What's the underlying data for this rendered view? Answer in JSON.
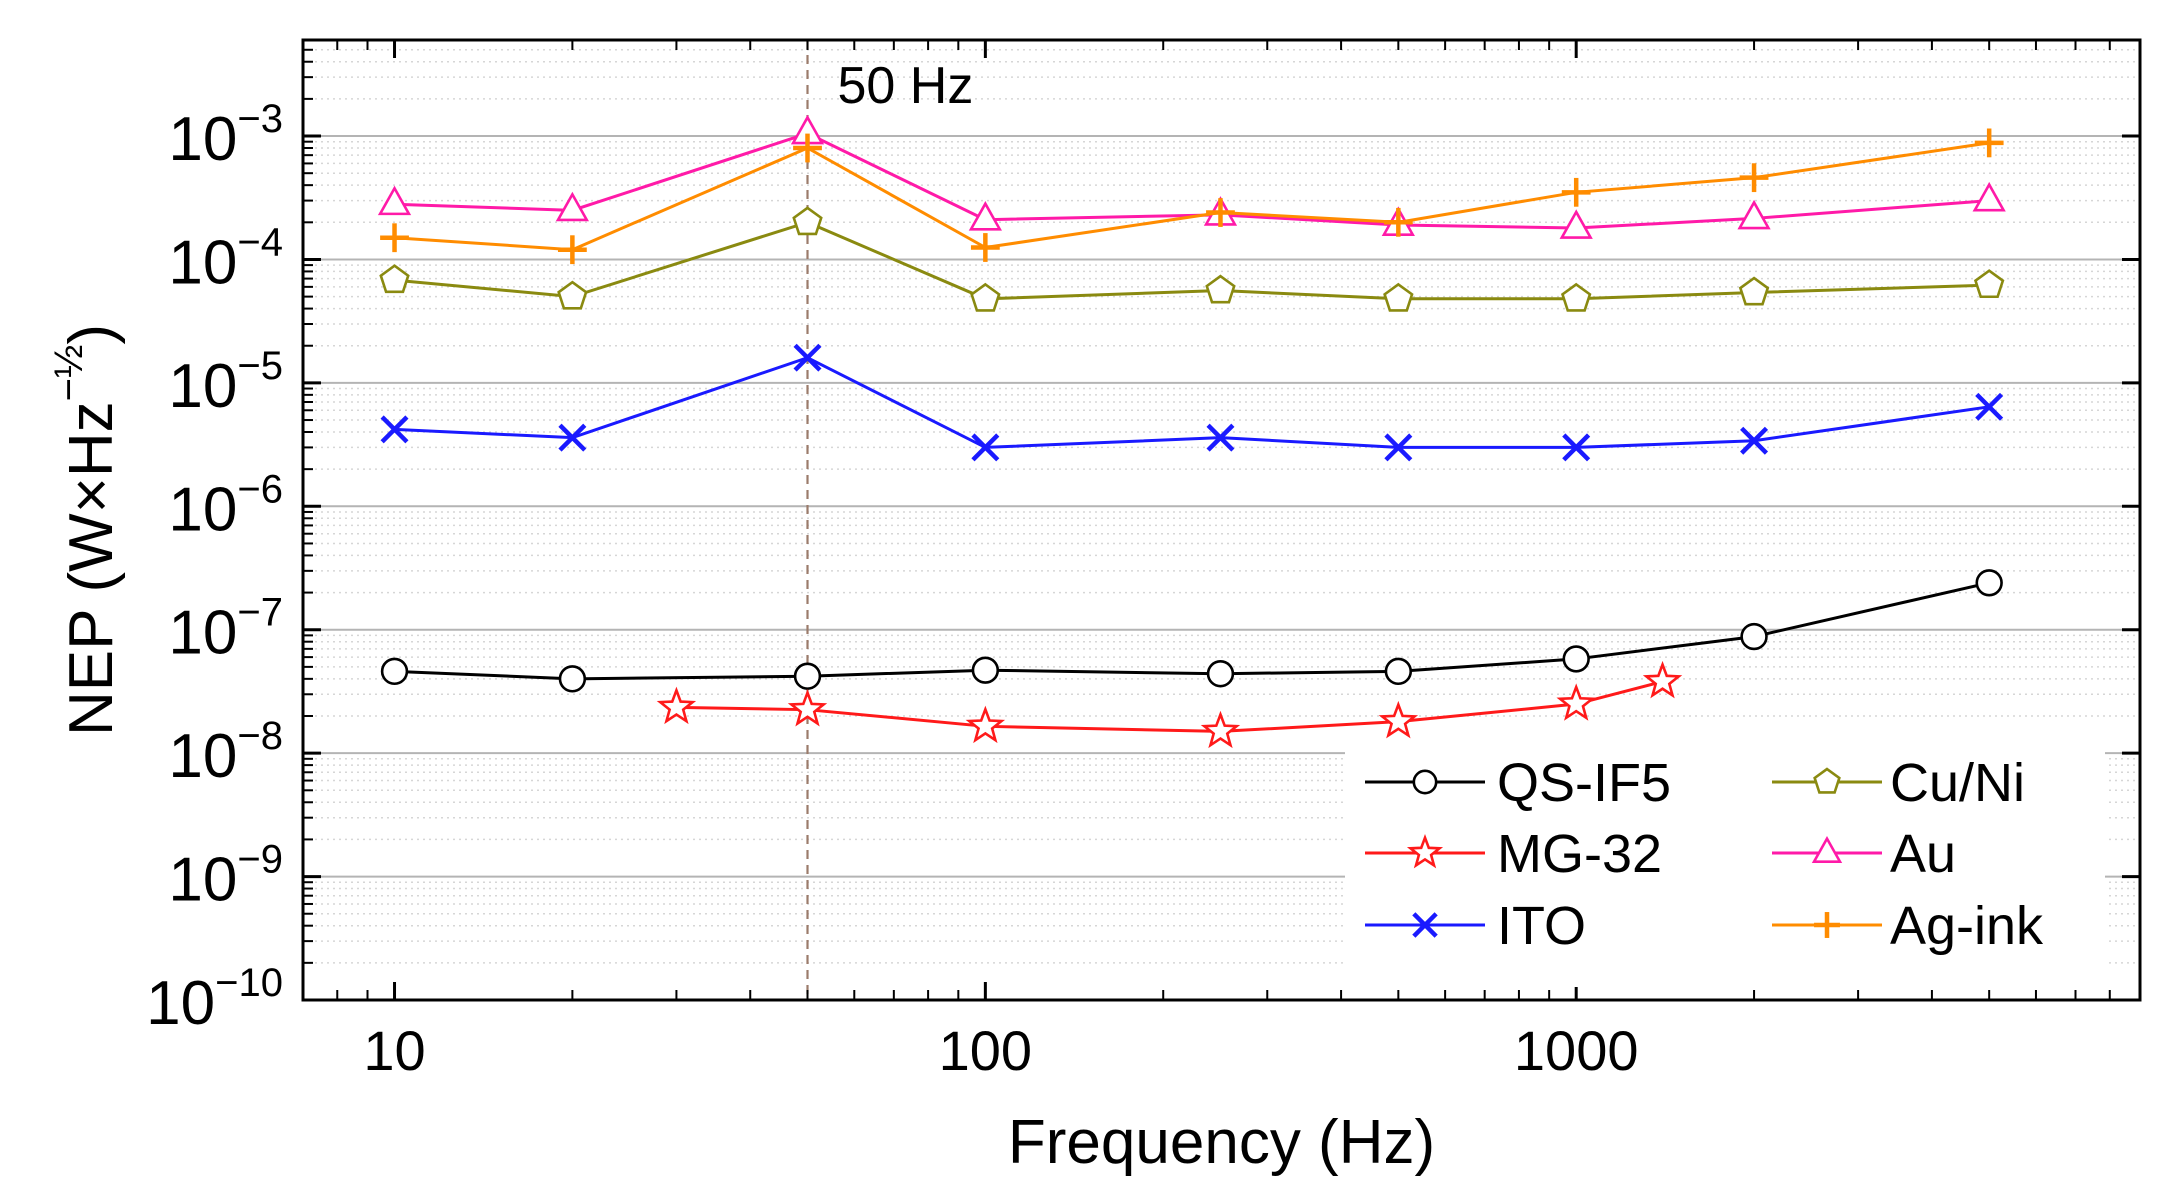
{
  "chart_data": {
    "type": "line",
    "title": "",
    "xlabel": "Frequency (Hz)",
    "ylabel_prefix": "NEP (W×Hz",
    "ylabel_exponent": "−½",
    "ylabel_suffix": ")",
    "xscale": "log",
    "yscale": "log",
    "xlim": [
      7,
      9000
    ],
    "ylim": [
      1e-10,
      0.006
    ],
    "x_ticks": [
      {
        "value": 10,
        "label": "10"
      },
      {
        "value": 100,
        "label": "100"
      },
      {
        "value": 1000,
        "label": "1000"
      }
    ],
    "y_ticks": [
      {
        "value": 1e-10,
        "base": "10",
        "exp": "−10"
      },
      {
        "value": 1e-09,
        "base": "10",
        "exp": "−9"
      },
      {
        "value": 1e-08,
        "base": "10",
        "exp": "−8"
      },
      {
        "value": 1e-07,
        "base": "10",
        "exp": "−7"
      },
      {
        "value": 1e-06,
        "base": "10",
        "exp": "−6"
      },
      {
        "value": 1e-05,
        "base": "10",
        "exp": "−5"
      },
      {
        "value": 0.0001,
        "base": "10",
        "exp": "−4"
      },
      {
        "value": 0.001,
        "base": "10",
        "exp": "−3"
      }
    ],
    "grid": "horizontal",
    "annotation": {
      "x": 50,
      "text": "50 Hz"
    },
    "legend_position": "bottom-right",
    "series": [
      {
        "name": "QS-IF5",
        "color": "#000000",
        "marker": "circle",
        "points": [
          [
            10,
            4.6e-08
          ],
          [
            20,
            4e-08
          ],
          [
            50,
            4.2e-08
          ],
          [
            100,
            4.7e-08
          ],
          [
            250,
            4.4e-08
          ],
          [
            500,
            4.6e-08
          ],
          [
            1000,
            5.8e-08
          ],
          [
            2000,
            8.8e-08
          ],
          [
            5000,
            2.4e-07
          ]
        ]
      },
      {
        "name": "MG-32",
        "color": "#ff1a1a",
        "marker": "star",
        "points": [
          [
            30,
            2.35e-08
          ],
          [
            50,
            2.25e-08
          ],
          [
            100,
            1.65e-08
          ],
          [
            250,
            1.5e-08
          ],
          [
            500,
            1.8e-08
          ],
          [
            1000,
            2.5e-08
          ],
          [
            1400,
            3.8e-08
          ]
        ]
      },
      {
        "name": "ITO",
        "color": "#1a1aff",
        "marker": "x",
        "points": [
          [
            10,
            4.2e-06
          ],
          [
            20,
            3.6e-06
          ],
          [
            50,
            1.6e-05
          ],
          [
            100,
            3e-06
          ],
          [
            250,
            3.6e-06
          ],
          [
            500,
            3e-06
          ],
          [
            1000,
            3e-06
          ],
          [
            2000,
            3.4e-06
          ],
          [
            5000,
            6.4e-06
          ]
        ]
      },
      {
        "name": "Cu/Ni",
        "color": "#8a8a10",
        "marker": "pentagon",
        "points": [
          [
            10,
            6.8e-05
          ],
          [
            20,
            5e-05
          ],
          [
            50,
            0.0002
          ],
          [
            100,
            4.8e-05
          ],
          [
            250,
            5.6e-05
          ],
          [
            500,
            4.8e-05
          ],
          [
            1000,
            4.8e-05
          ],
          [
            2000,
            5.4e-05
          ],
          [
            5000,
            6.2e-05
          ]
        ]
      },
      {
        "name": "Au",
        "color": "#ff1aa8",
        "marker": "triangle",
        "points": [
          [
            10,
            0.00028
          ],
          [
            20,
            0.00025
          ],
          [
            50,
            0.00105
          ],
          [
            100,
            0.00021
          ],
          [
            250,
            0.00023
          ],
          [
            500,
            0.00019
          ],
          [
            1000,
            0.00018
          ],
          [
            2000,
            0.000215
          ],
          [
            5000,
            0.0003
          ]
        ]
      },
      {
        "name": "Ag-ink",
        "color": "#ff8c00",
        "marker": "plus",
        "points": [
          [
            10,
            0.00015
          ],
          [
            20,
            0.00012
          ],
          [
            50,
            0.0008
          ],
          [
            100,
            0.000125
          ],
          [
            250,
            0.00024
          ],
          [
            500,
            0.0002
          ],
          [
            1000,
            0.00035
          ],
          [
            2000,
            0.00046
          ],
          [
            5000,
            0.00088
          ]
        ]
      }
    ]
  }
}
